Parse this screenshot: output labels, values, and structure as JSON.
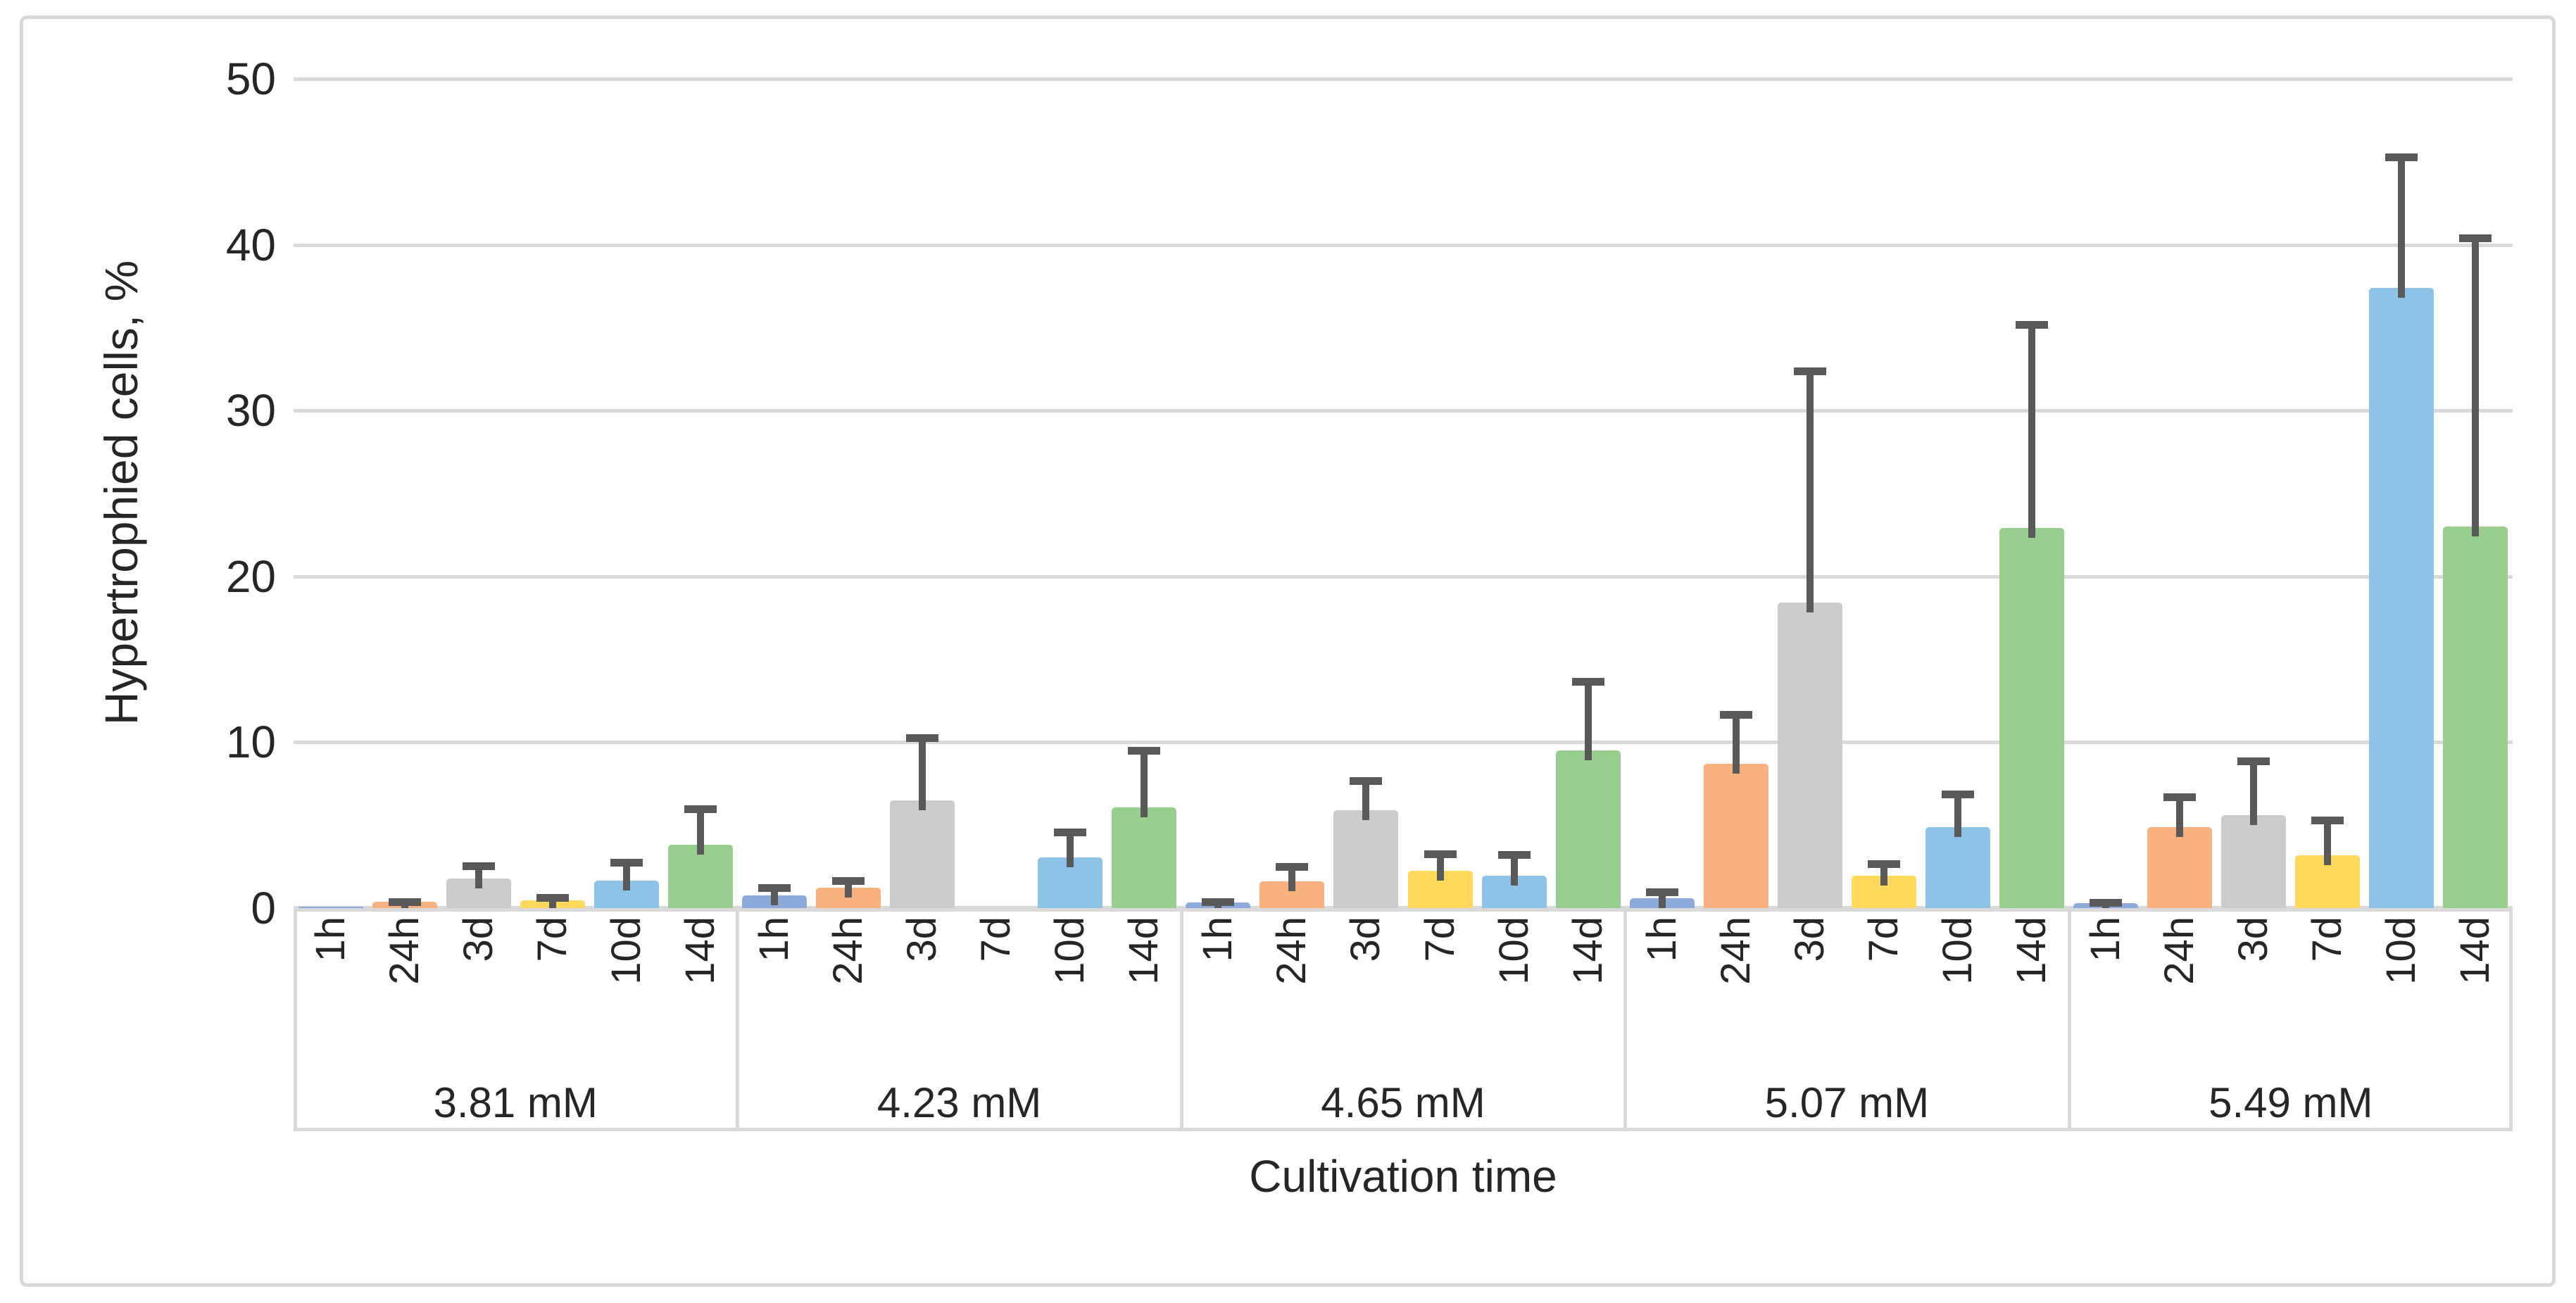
{
  "figure": {
    "y_axis_title": "Hypertrophied cells, %",
    "x_axis_title": "Cultivation time"
  },
  "chart_data": {
    "type": "bar",
    "title": "",
    "ylabel": "Hypertrophied cells, %",
    "xlabel": "Cultivation time",
    "ylim": [
      0,
      50
    ],
    "y_tick_step": 10,
    "y_ticks": [
      0,
      10,
      20,
      30,
      40,
      50
    ],
    "grid": true,
    "legend": "none",
    "group_labels": [
      "3.81 mM",
      "4.23 mM",
      "4.65 mM",
      "5.07 mM",
      "5.49 mM"
    ],
    "categories_per_group": [
      "1h",
      "24h",
      "3d",
      "7d",
      "10d",
      "14d"
    ],
    "error_bars": "plus_direction_only",
    "series": [
      {
        "name": "1h",
        "color": "#8CABDB",
        "values": [
          0.1,
          0.75,
          0.35,
          0.6,
          0.3
        ],
        "errors_plus": [
          0,
          0.7,
          0.25,
          0.6,
          0.25
        ]
      },
      {
        "name": "24h",
        "color": "#F9B17F",
        "values": [
          0.4,
          1.25,
          1.6,
          8.7,
          4.9
        ],
        "errors_plus": [
          0.2,
          0.6,
          1.1,
          3.2,
          2.0
        ]
      },
      {
        "name": "3d",
        "color": "#CBCBCB",
        "values": [
          1.8,
          6.5,
          5.9,
          18.4,
          5.6
        ],
        "errors_plus": [
          0.95,
          4.0,
          2.0,
          14.2,
          3.5
        ]
      },
      {
        "name": "7d",
        "color": "#FFD95C",
        "values": [
          0.45,
          0,
          2.25,
          1.95,
          3.2
        ],
        "errors_plus": [
          0.4,
          0,
          1.25,
          0.95,
          2.3
        ]
      },
      {
        "name": "10d",
        "color": "#8DC3E6",
        "values": [
          1.65,
          3.05,
          1.95,
          4.9,
          37.4
        ],
        "errors_plus": [
          1.3,
          1.75,
          1.5,
          2.2,
          8.1
        ]
      },
      {
        "name": "14d",
        "color": "#98CF8E",
        "values": [
          3.8,
          6.05,
          9.5,
          22.9,
          23.0
        ],
        "errors_plus": [
          2.4,
          3.65,
          4.4,
          12.5,
          17.6
        ]
      }
    ]
  },
  "colors": {
    "error_bar": "#595959",
    "gridline": "#D9D9D9",
    "axis_line": "#D9D9D9",
    "frame_border": "#D8D8D8",
    "text": "#262626"
  }
}
